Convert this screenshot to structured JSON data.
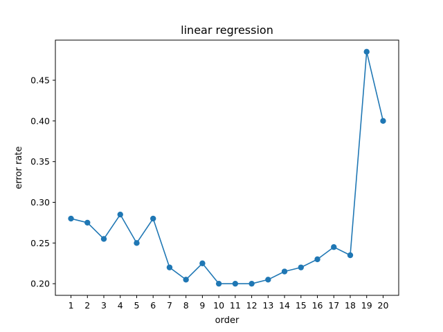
{
  "chart_data": {
    "type": "line",
    "title": "linear regression",
    "xlabel": "order",
    "ylabel": "error rate",
    "x": [
      1,
      2,
      3,
      4,
      5,
      6,
      7,
      8,
      9,
      10,
      11,
      12,
      13,
      14,
      15,
      16,
      17,
      18,
      19,
      20
    ],
    "xticks": [
      "1",
      "2",
      "3",
      "4",
      "5",
      "6",
      "7",
      "8",
      "9",
      "10",
      "11",
      "12",
      "13",
      "14",
      "15",
      "16",
      "17",
      "18",
      "19",
      "20"
    ],
    "yticks": [
      "0.20",
      "0.25",
      "0.30",
      "0.35",
      "0.40",
      "0.45"
    ],
    "series": [
      {
        "values": [
          0.28,
          0.275,
          0.255,
          0.285,
          0.25,
          0.28,
          0.22,
          0.205,
          0.225,
          0.2,
          0.2,
          0.2,
          0.205,
          0.215,
          0.22,
          0.23,
          0.245,
          0.235,
          0.485,
          0.4
        ],
        "color": "#1f77b4",
        "marker": "circle"
      }
    ],
    "xlim": [
      0.05,
      20.95
    ],
    "ylim": [
      0.1857,
      0.4993
    ],
    "grid": false,
    "legend": "none"
  }
}
